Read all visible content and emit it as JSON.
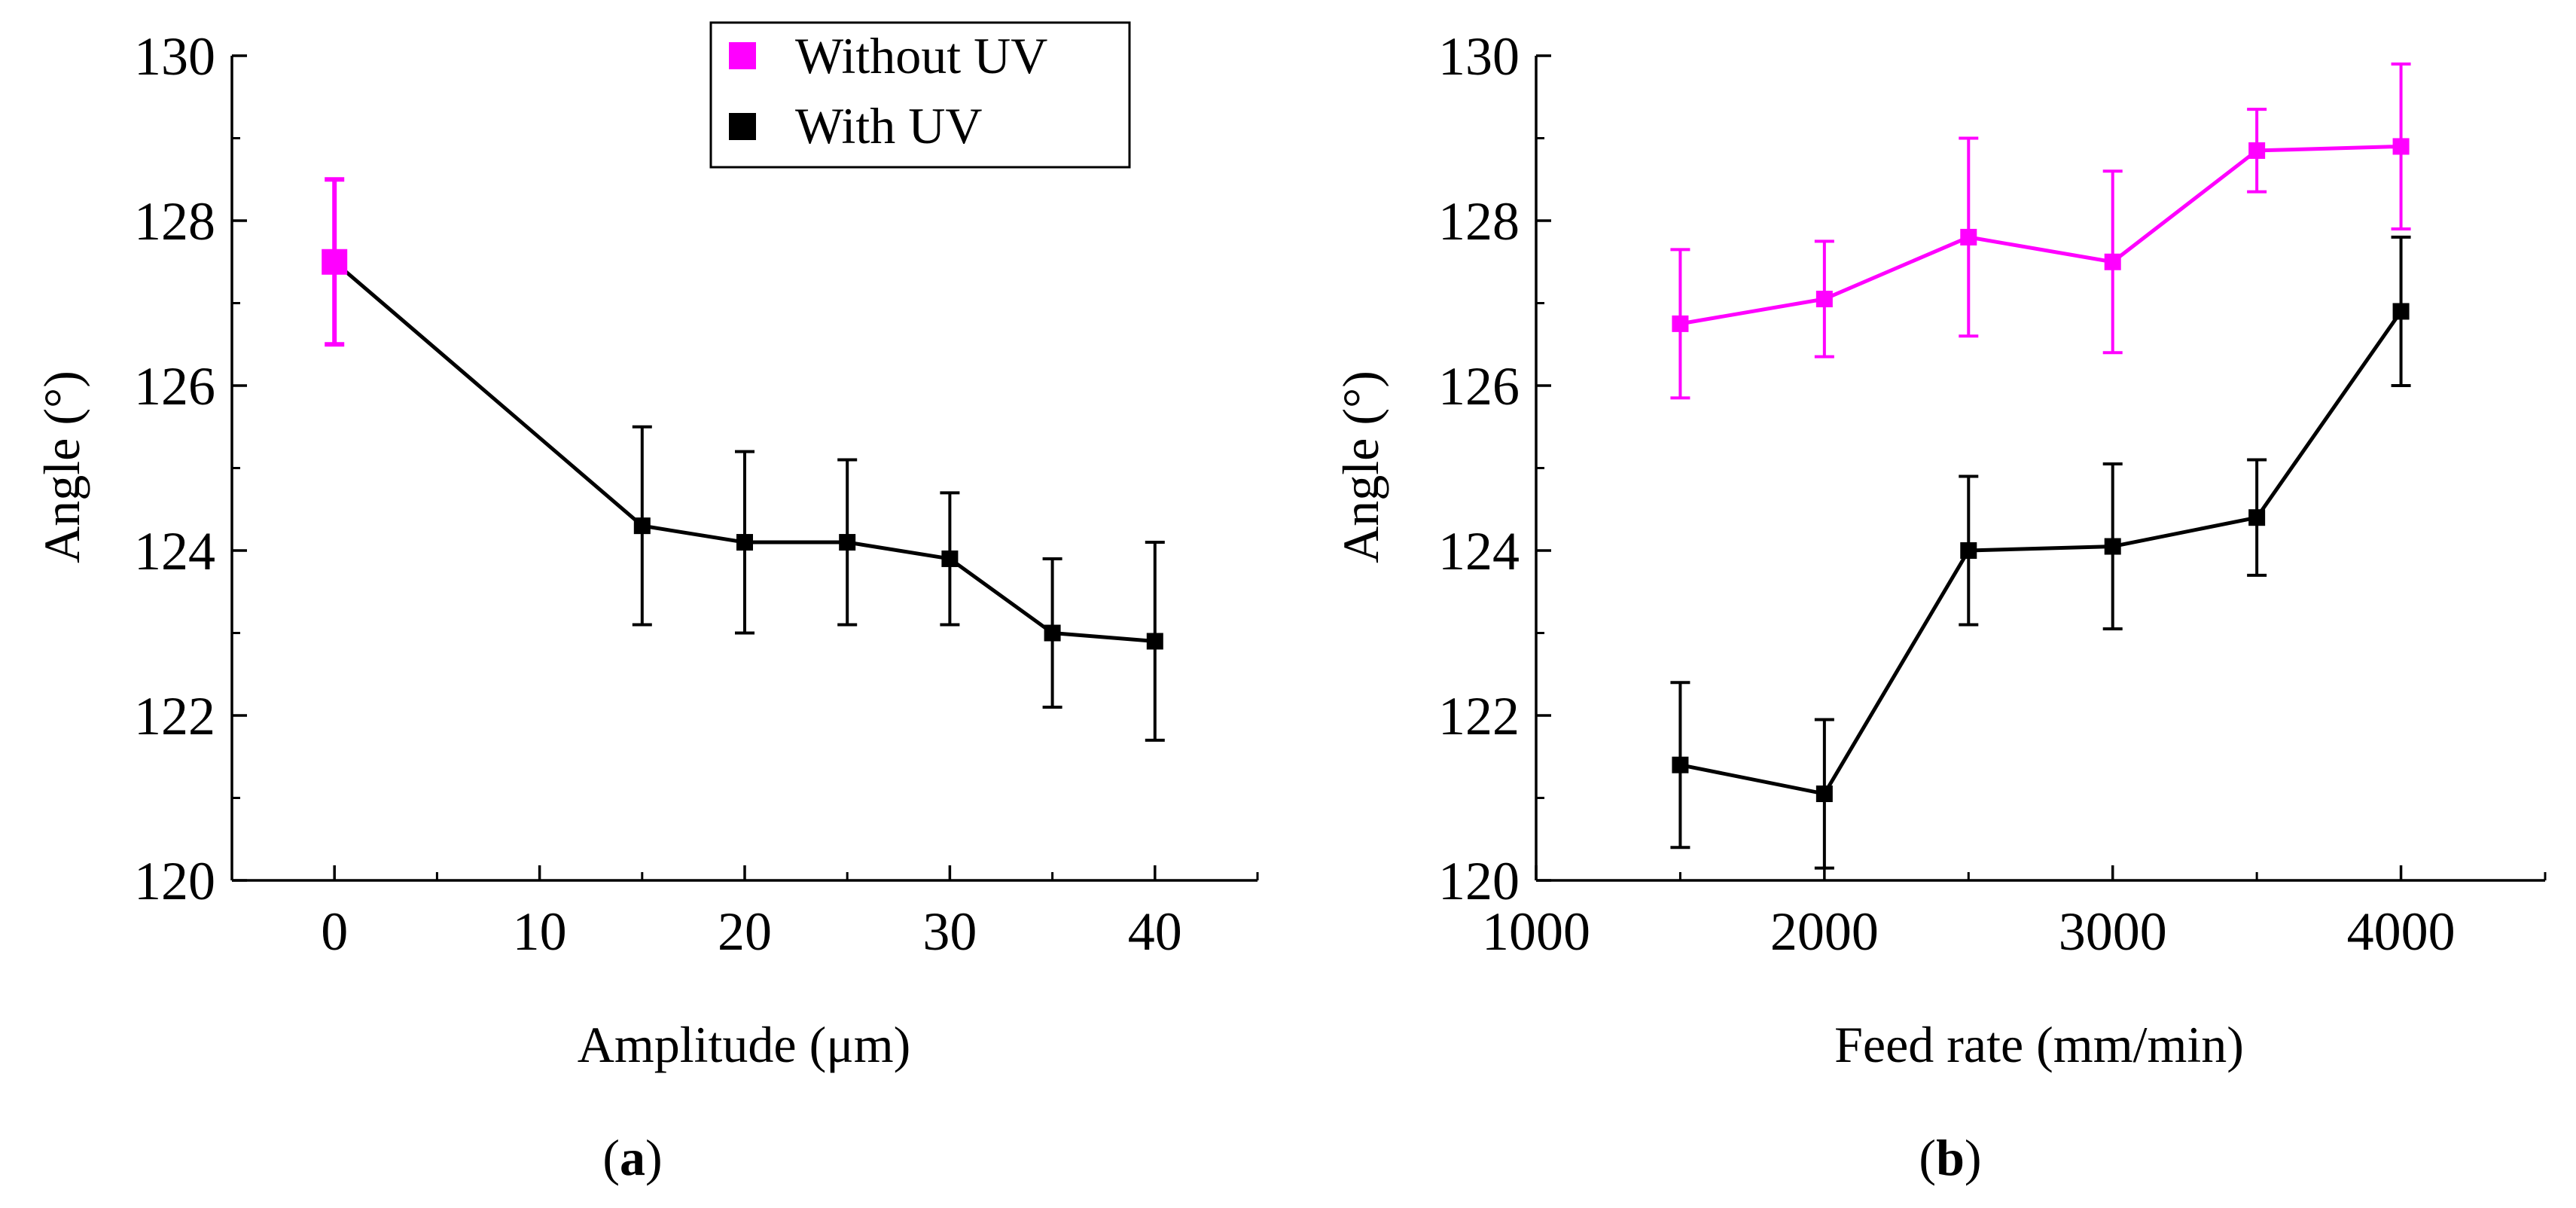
{
  "colors": {
    "with_uv": "#000000",
    "without_uv": "#ff00ff",
    "axis": "#000000"
  },
  "legend": {
    "items": [
      {
        "label": "Without UV",
        "color": "#ff00ff"
      },
      {
        "label": "With UV",
        "color": "#000000"
      }
    ],
    "position": "top-right of panel (a)"
  },
  "chart_data": [
    {
      "type": "line",
      "panel_label": "a",
      "xlabel": "Amplitude (μm)",
      "ylabel": "Angle (°)",
      "xlim": [
        -5,
        45
      ],
      "ylim": [
        120,
        130
      ],
      "xticks": [
        0,
        10,
        20,
        30,
        40
      ],
      "xtick_labels": [
        "0",
        "10",
        "20",
        "30",
        "40"
      ],
      "yticks": [
        120,
        122,
        124,
        126,
        128,
        130
      ],
      "ytick_labels": [
        "120",
        "122",
        "124",
        "126",
        "128",
        "130"
      ],
      "series": [
        {
          "name": "Without UV",
          "color": "#ff00ff",
          "points": [
            {
              "x": 0,
              "y": 127.5,
              "err": 1.0
            }
          ]
        },
        {
          "name": "With UV",
          "color": "#000000",
          "points": [
            {
              "x": 0,
              "y": 127.5,
              "err": 0
            },
            {
              "x": 15,
              "y": 124.3,
              "err": 1.2
            },
            {
              "x": 20,
              "y": 124.1,
              "err": 1.1
            },
            {
              "x": 25,
              "y": 124.1,
              "err": 1.0
            },
            {
              "x": 30,
              "y": 123.9,
              "err": 0.8
            },
            {
              "x": 35,
              "y": 123.0,
              "err": 0.9
            },
            {
              "x": 40,
              "y": 122.9,
              "err": 1.2
            }
          ]
        }
      ]
    },
    {
      "type": "line",
      "panel_label": "b",
      "xlabel": "Feed rate (mm/min)",
      "ylabel": "Angle (°)",
      "xlim": [
        1000,
        4500
      ],
      "ylim": [
        120,
        130
      ],
      "xticks": [
        1000,
        2000,
        3000,
        4000
      ],
      "xtick_labels": [
        "1000",
        "2000",
        "3000",
        "4000"
      ],
      "yticks": [
        120,
        122,
        124,
        126,
        128,
        130
      ],
      "ytick_labels": [
        "120",
        "122",
        "124",
        "126",
        "128",
        "130"
      ],
      "series": [
        {
          "name": "Without UV",
          "color": "#ff00ff",
          "points": [
            {
              "x": 1500,
              "y": 126.75,
              "err": 0.9
            },
            {
              "x": 2000,
              "y": 127.05,
              "err": 0.7
            },
            {
              "x": 2500,
              "y": 127.8,
              "err": 1.2
            },
            {
              "x": 3000,
              "y": 127.5,
              "err": 1.1
            },
            {
              "x": 3500,
              "y": 128.85,
              "err": 0.5
            },
            {
              "x": 4000,
              "y": 128.9,
              "err": 1.0
            }
          ]
        },
        {
          "name": "With UV",
          "color": "#000000",
          "points": [
            {
              "x": 1500,
              "y": 121.4,
              "err": 1.0
            },
            {
              "x": 2000,
              "y": 121.05,
              "err": 0.9
            },
            {
              "x": 2500,
              "y": 124.0,
              "err": 0.9
            },
            {
              "x": 3000,
              "y": 124.05,
              "err": 1.0
            },
            {
              "x": 3500,
              "y": 124.4,
              "err": 0.7
            },
            {
              "x": 4000,
              "y": 126.9,
              "err": 0.9
            }
          ]
        }
      ]
    }
  ]
}
